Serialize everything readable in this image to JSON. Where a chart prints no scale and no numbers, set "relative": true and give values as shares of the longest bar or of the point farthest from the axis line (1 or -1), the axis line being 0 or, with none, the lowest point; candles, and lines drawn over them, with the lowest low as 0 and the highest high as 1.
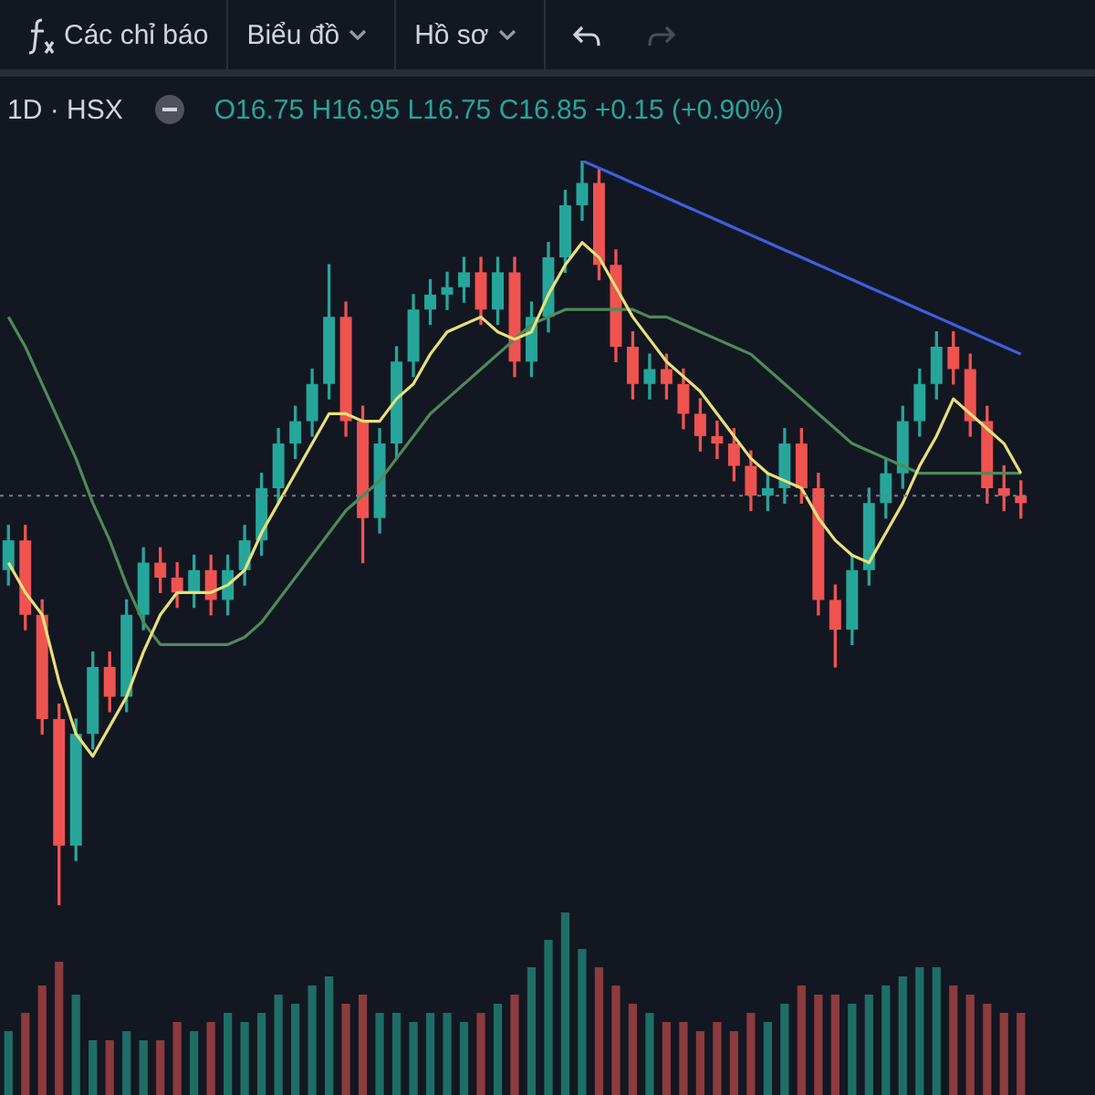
{
  "chart_data": [
    {
      "type": "candlestick",
      "title": "1D · HSX",
      "subtitle": "O16.75 H16.95 L16.75 C16.85 +0.15 (+0.90%)",
      "annotations": [
        "Các chỉ báo",
        "Biểu đồ",
        "Hồ sơ"
      ],
      "relative": true,
      "categories": [
        null,
        null,
        null,
        null,
        null,
        null,
        null,
        null,
        null,
        null,
        null,
        null,
        null,
        null,
        null,
        null,
        null,
        null,
        null,
        null,
        null,
        null,
        null,
        null,
        null,
        null,
        null,
        null,
        null,
        null,
        null,
        null,
        null,
        null,
        null,
        null,
        null,
        null,
        null,
        null,
        null,
        null,
        null,
        null,
        null,
        null,
        null,
        null,
        null,
        null,
        null,
        null,
        null,
        null,
        null,
        null,
        null,
        null,
        null,
        null,
        null
      ],
      "ohlc": [
        [
          0.45,
          0.51,
          0.43,
          0.49
        ],
        [
          0.49,
          0.51,
          0.37,
          0.39
        ],
        [
          0.39,
          0.41,
          0.23,
          0.25
        ],
        [
          0.25,
          0.27,
          0,
          0.08
        ],
        [
          0.08,
          0.25,
          0.06,
          0.23
        ],
        [
          0.23,
          0.34,
          0.21,
          0.32
        ],
        [
          0.32,
          0.34,
          0.26,
          0.28
        ],
        [
          0.28,
          0.41,
          0.26,
          0.39
        ],
        [
          0.39,
          0.48,
          0.37,
          0.46
        ],
        [
          0.46,
          0.48,
          0.42,
          0.44
        ],
        [
          0.44,
          0.46,
          0.4,
          0.42
        ],
        [
          0.42,
          0.47,
          0.4,
          0.45
        ],
        [
          0.45,
          0.47,
          0.39,
          0.41
        ],
        [
          0.41,
          0.47,
          0.39,
          0.45
        ],
        [
          0.45,
          0.51,
          0.43,
          0.49
        ],
        [
          0.49,
          0.58,
          0.47,
          0.56
        ],
        [
          0.56,
          0.64,
          0.54,
          0.62
        ],
        [
          0.62,
          0.67,
          0.6,
          0.65
        ],
        [
          0.65,
          0.72,
          0.63,
          0.7
        ],
        [
          0.7,
          0.86,
          0.68,
          0.79
        ],
        [
          0.79,
          0.81,
          0.63,
          0.65
        ],
        [
          0.65,
          0.67,
          0.46,
          0.52
        ],
        [
          0.52,
          0.64,
          0.5,
          0.62
        ],
        [
          0.62,
          0.75,
          0.6,
          0.73
        ],
        [
          0.73,
          0.82,
          0.71,
          0.8
        ],
        [
          0.8,
          0.84,
          0.78,
          0.82
        ],
        [
          0.82,
          0.85,
          0.8,
          0.83
        ],
        [
          0.83,
          0.87,
          0.81,
          0.85
        ],
        [
          0.85,
          0.87,
          0.78,
          0.8
        ],
        [
          0.8,
          0.87,
          0.78,
          0.85
        ],
        [
          0.85,
          0.87,
          0.71,
          0.73
        ],
        [
          0.73,
          0.81,
          0.71,
          0.79
        ],
        [
          0.79,
          0.89,
          0.77,
          0.87
        ],
        [
          0.87,
          0.96,
          0.85,
          0.94
        ],
        [
          0.94,
          1,
          0.92,
          0.97
        ],
        [
          0.97,
          0.99,
          0.84,
          0.86
        ],
        [
          0.86,
          0.88,
          0.73,
          0.75
        ],
        [
          0.75,
          0.77,
          0.68,
          0.7
        ],
        [
          0.7,
          0.74,
          0.68,
          0.72
        ],
        [
          0.72,
          0.74,
          0.68,
          0.7
        ],
        [
          0.7,
          0.72,
          0.64,
          0.66
        ],
        [
          0.66,
          0.68,
          0.61,
          0.63
        ],
        [
          0.63,
          0.65,
          0.6,
          0.62
        ],
        [
          0.62,
          0.64,
          0.57,
          0.59
        ],
        [
          0.59,
          0.61,
          0.53,
          0.55
        ],
        [
          0.55,
          0.58,
          0.53,
          0.56
        ],
        [
          0.56,
          0.64,
          0.54,
          0.62
        ],
        [
          0.62,
          0.64,
          0.54,
          0.56
        ],
        [
          0.56,
          0.58,
          0.39,
          0.41
        ],
        [
          0.41,
          0.43,
          0.32,
          0.37
        ],
        [
          0.37,
          0.47,
          0.35,
          0.45
        ],
        [
          0.45,
          0.56,
          0.43,
          0.54
        ],
        [
          0.54,
          0.6,
          0.52,
          0.58
        ],
        [
          0.58,
          0.67,
          0.56,
          0.65
        ],
        [
          0.65,
          0.72,
          0.63,
          0.7
        ],
        [
          0.7,
          0.77,
          0.68,
          0.75
        ],
        [
          0.75,
          0.77,
          0.7,
          0.72
        ],
        [
          0.72,
          0.74,
          0.63,
          0.65
        ],
        [
          0.65,
          0.67,
          0.54,
          0.56
        ],
        [
          0.56,
          0.59,
          0.53,
          0.55
        ],
        [
          0.55,
          0.57,
          0.52,
          0.54
        ]
      ],
      "colors": [
        "#26a69a",
        "#ef5350",
        "#ef5350",
        "#ef5350",
        "#26a69a",
        "#26a69a",
        "#ef5350",
        "#26a69a",
        "#26a69a",
        "#ef5350",
        "#ef5350",
        "#26a69a",
        "#ef5350",
        "#26a69a",
        "#26a69a",
        "#26a69a",
        "#26a69a",
        "#26a69a",
        "#26a69a",
        "#26a69a",
        "#ef5350",
        "#ef5350",
        "#26a69a",
        "#26a69a",
        "#26a69a",
        "#26a69a",
        "#26a69a",
        "#26a69a",
        "#ef5350",
        "#26a69a",
        "#ef5350",
        "#26a69a",
        "#26a69a",
        "#26a69a",
        "#26a69a",
        "#ef5350",
        "#ef5350",
        "#ef5350",
        "#26a69a",
        "#ef5350",
        "#ef5350",
        "#ef5350",
        "#ef5350",
        "#ef5350",
        "#ef5350",
        "#26a69a",
        "#26a69a",
        "#ef5350",
        "#ef5350",
        "#ef5350",
        "#26a69a",
        "#26a69a",
        "#26a69a",
        "#26a69a",
        "#26a69a",
        "#26a69a",
        "#ef5350",
        "#ef5350",
        "#ef5350",
        "#ef5350",
        "#ef5350"
      ],
      "series": [
        {
          "type": "line",
          "color": "#e8e07a",
          "values": [
            0.46,
            0.42,
            0.39,
            0.3,
            0.23,
            0.2,
            0.24,
            0.28,
            0.34,
            0.39,
            0.42,
            0.42,
            0.42,
            0.43,
            0.45,
            0.5,
            0.54,
            0.58,
            0.62,
            0.66,
            0.66,
            0.65,
            0.65,
            0.68,
            0.7,
            0.74,
            0.77,
            0.78,
            0.79,
            0.77,
            0.76,
            0.77,
            0.82,
            0.86,
            0.89,
            0.87,
            0.83,
            0.79,
            0.76,
            0.73,
            0.71,
            0.69,
            0.66,
            0.63,
            0.6,
            0.58,
            0.57,
            0.56,
            0.52,
            0.49,
            0.47,
            0.46,
            0.5,
            0.54,
            0.59,
            0.63,
            0.68,
            0.66,
            0.64,
            0.62,
            0.58
          ]
        },
        {
          "type": "line",
          "color": "#4f8a5a",
          "values": [
            0.79,
            0.75,
            0.7,
            0.65,
            0.6,
            0.54,
            0.49,
            0.43,
            0.38,
            0.35,
            0.35,
            0.35,
            0.35,
            0.35,
            0.36,
            0.38,
            0.41,
            0.44,
            0.47,
            0.5,
            0.53,
            0.55,
            0.57,
            0.6,
            0.63,
            0.66,
            0.68,
            0.7,
            0.72,
            0.74,
            0.76,
            0.78,
            0.79,
            0.8,
            0.8,
            0.8,
            0.8,
            0.8,
            0.79,
            0.79,
            0.78,
            0.77,
            0.76,
            0.75,
            0.74,
            0.72,
            0.7,
            0.68,
            0.66,
            0.64,
            0.62,
            0.61,
            0.6,
            0.59,
            0.58,
            0.58,
            0.58,
            0.58,
            0.58,
            0.58,
            0.58
          ]
        },
        {
          "type": "line",
          "color": "#3f5fe0",
          "values": [
            null,
            null,
            null,
            null,
            null,
            null,
            null,
            null,
            null,
            null,
            null,
            null,
            null,
            null,
            null,
            null,
            null,
            null,
            null,
            null,
            null,
            null,
            null,
            null,
            null,
            null,
            null,
            null,
            null,
            null,
            null,
            null,
            null,
            null,
            1,
            0.99,
            0.98,
            0.97,
            0.96,
            0.95,
            0.94,
            0.93,
            0.92,
            0.91,
            0.9,
            0.89,
            0.88,
            0.87,
            0.86,
            0.85,
            0.84,
            0.83,
            0.82,
            0.81,
            0.8,
            0.79,
            0.78,
            0.77,
            0.76,
            0.75,
            0.74
          ]
        }
      ],
      "ref_lines": [
        {
          "axis": "y",
          "value": 0.55,
          "color": "#787b86",
          "line_style": "dotted"
        }
      ],
      "marker": "none",
      "legend": false
    },
    {
      "type": "bar",
      "relative": true,
      "categories": [
        null,
        null,
        null,
        null,
        null,
        null,
        null,
        null,
        null,
        null,
        null,
        null,
        null,
        null,
        null,
        null,
        null,
        null,
        null,
        null,
        null,
        null,
        null,
        null,
        null,
        null,
        null,
        null,
        null,
        null,
        null,
        null,
        null,
        null,
        null,
        null,
        null,
        null,
        null,
        null,
        null,
        null,
        null,
        null,
        null,
        null,
        null,
        null,
        null,
        null,
        null,
        null,
        null,
        null,
        null,
        null,
        null,
        null,
        null,
        null,
        null
      ],
      "values": [
        0.35,
        0.45,
        0.6,
        0.73,
        0.55,
        0.3,
        0.3,
        0.35,
        0.3,
        0.3,
        0.4,
        0.35,
        0.4,
        0.45,
        0.4,
        0.45,
        0.55,
        0.5,
        0.6,
        0.65,
        0.5,
        0.55,
        0.45,
        0.45,
        0.4,
        0.45,
        0.45,
        0.4,
        0.45,
        0.5,
        0.55,
        0.7,
        0.85,
        1,
        0.8,
        0.7,
        0.6,
        0.5,
        0.45,
        0.4,
        0.4,
        0.35,
        0.4,
        0.35,
        0.45,
        0.4,
        0.5,
        0.6,
        0.55,
        0.55,
        0.5,
        0.55,
        0.6,
        0.65,
        0.7,
        0.7,
        0.6,
        0.55,
        0.5,
        0.45,
        0.45
      ],
      "colors": [
        "#1e6e66",
        "#8c3b3e",
        "#8c3b3e",
        "#8c3b3e",
        "#1e6e66",
        "#1e6e66",
        "#8c3b3e",
        "#1e6e66",
        "#1e6e66",
        "#8c3b3e",
        "#8c3b3e",
        "#1e6e66",
        "#8c3b3e",
        "#1e6e66",
        "#1e6e66",
        "#1e6e66",
        "#1e6e66",
        "#1e6e66",
        "#1e6e66",
        "#1e6e66",
        "#8c3b3e",
        "#8c3b3e",
        "#1e6e66",
        "#1e6e66",
        "#1e6e66",
        "#1e6e66",
        "#1e6e66",
        "#1e6e66",
        "#8c3b3e",
        "#1e6e66",
        "#8c3b3e",
        "#1e6e66",
        "#1e6e66",
        "#1e6e66",
        "#1e6e66",
        "#8c3b3e",
        "#8c3b3e",
        "#8c3b3e",
        "#1e6e66",
        "#8c3b3e",
        "#8c3b3e",
        "#8c3b3e",
        "#8c3b3e",
        "#8c3b3e",
        "#8c3b3e",
        "#1e6e66",
        "#1e6e66",
        "#8c3b3e",
        "#8c3b3e",
        "#8c3b3e",
        "#1e6e66",
        "#1e6e66",
        "#1e6e66",
        "#1e6e66",
        "#1e6e66",
        "#1e6e66",
        "#8c3b3e",
        "#8c3b3e",
        "#8c3b3e",
        "#8c3b3e",
        "#8c3b3e"
      ],
      "legend": false
    }
  ]
}
